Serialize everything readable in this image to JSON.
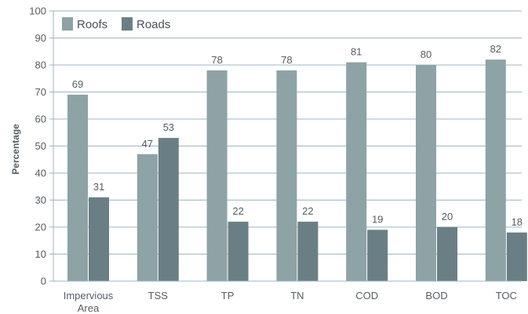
{
  "chart_data": {
    "type": "bar",
    "title": "",
    "xlabel": "",
    "ylabel": "Percentage",
    "ylim": [
      0,
      100
    ],
    "yticks": [
      0,
      10,
      20,
      30,
      40,
      50,
      60,
      70,
      80,
      90,
      100
    ],
    "grid": true,
    "legend_position": "top-left",
    "categories": [
      [
        "Impervious",
        "Area"
      ],
      [
        "TSS"
      ],
      [
        "TP"
      ],
      [
        "TN"
      ],
      [
        "COD"
      ],
      [
        "BOD"
      ],
      [
        "TOC"
      ]
    ],
    "series": [
      {
        "name": "Roofs",
        "color": "#8da3a6",
        "values": [
          69,
          47,
          78,
          78,
          81,
          80,
          82
        ]
      },
      {
        "name": "Roads",
        "color": "#6a7f85",
        "values": [
          31,
          53,
          22,
          22,
          19,
          20,
          18
        ]
      }
    ],
    "data_labels": {
      "Roofs": [
        "69",
        "47",
        "78",
        "78",
        "81",
        "80",
        "82"
      ],
      "Roads": [
        "31",
        "53",
        "22",
        "22",
        "19",
        "20",
        "18"
      ]
    }
  }
}
